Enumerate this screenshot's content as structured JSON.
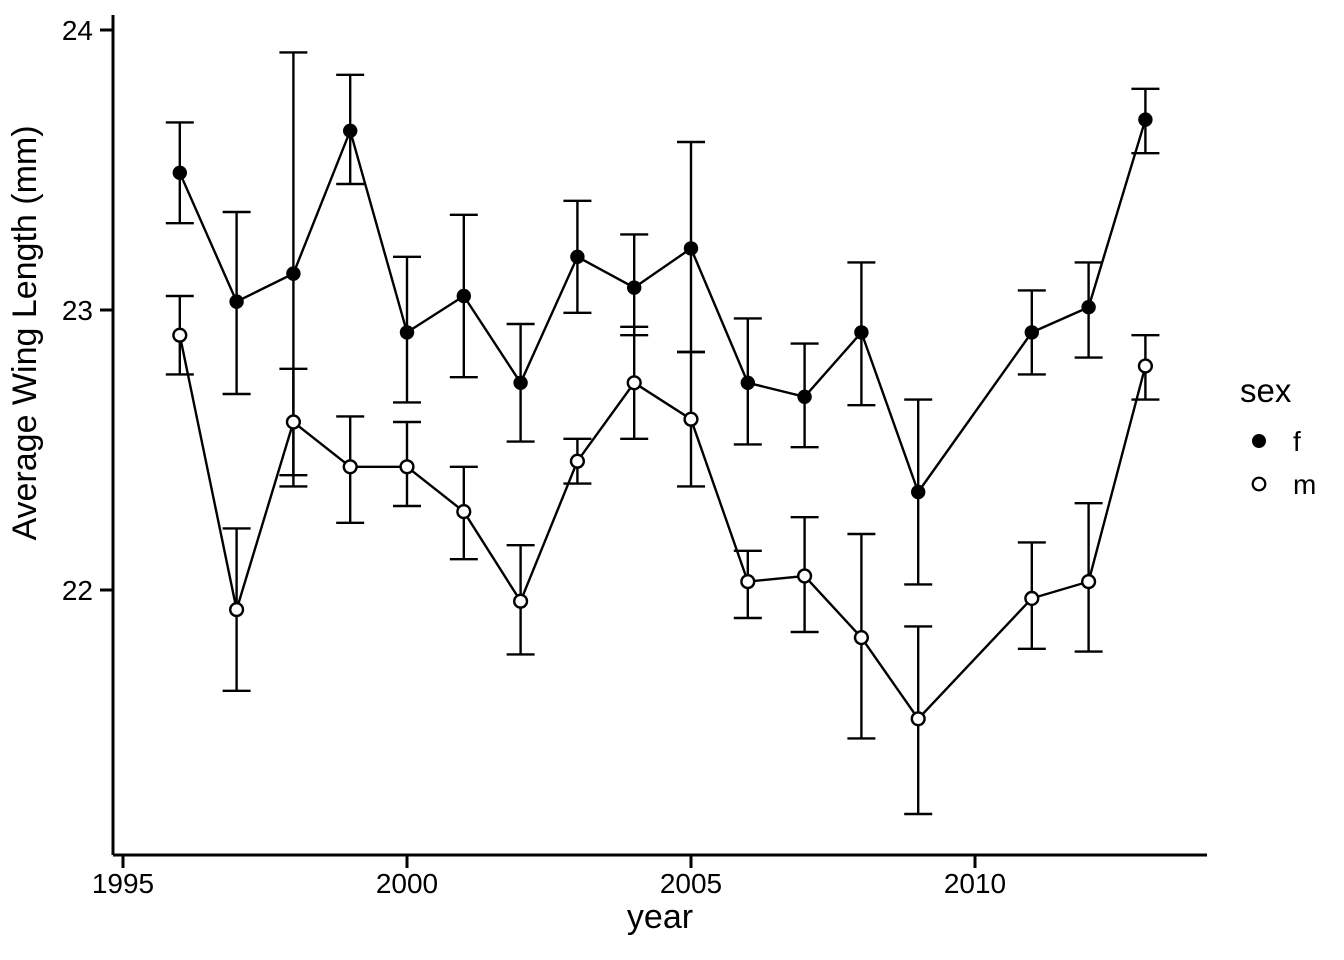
{
  "figure": {
    "background_color": "#ffffff",
    "foreground_color": "#000000",
    "y_axis_title": "Average Wing Length (mm)",
    "x_axis_title": "year",
    "legend": {
      "title": "sex",
      "items": [
        {
          "label": "f",
          "marker": "filled-circle"
        },
        {
          "label": "m",
          "marker": "open-circle"
        }
      ]
    }
  },
  "chart_data": {
    "type": "line",
    "title": "",
    "xlabel": "year",
    "ylabel": "Average Wing Length (mm)",
    "grid": false,
    "legend_position": "right",
    "xlim": [
      1994.8,
      2014.1
    ],
    "ylim": [
      21.05,
      24.05
    ],
    "xticks": [
      1995,
      2000,
      2005,
      2010
    ],
    "yticks": [
      22,
      23,
      24
    ],
    "x": [
      1996,
      1997,
      1998,
      1999,
      2000,
      2001,
      2002,
      2003,
      2004,
      2005,
      2006,
      2007,
      2008,
      2009,
      2011,
      2012,
      2013
    ],
    "error_bars": true,
    "series": [
      {
        "name": "f",
        "marker": "filled-circle",
        "values": [
          23.49,
          23.03,
          23.13,
          23.64,
          22.92,
          23.05,
          22.74,
          23.19,
          23.08,
          23.22,
          22.74,
          22.69,
          22.92,
          22.35,
          22.92,
          23.01,
          23.68
        ],
        "err_low": [
          23.31,
          22.7,
          22.41,
          23.45,
          22.67,
          22.76,
          22.53,
          22.99,
          22.91,
          22.85,
          22.52,
          22.51,
          22.66,
          22.02,
          22.77,
          22.83,
          23.56
        ],
        "err_high": [
          23.67,
          23.35,
          23.92,
          23.84,
          23.19,
          23.34,
          22.95,
          23.39,
          23.27,
          23.6,
          22.97,
          22.88,
          23.17,
          22.68,
          23.07,
          23.17,
          23.79
        ]
      },
      {
        "name": "m",
        "marker": "open-circle",
        "values": [
          22.91,
          21.93,
          22.6,
          22.44,
          22.44,
          22.28,
          21.96,
          22.46,
          22.74,
          22.61,
          22.03,
          22.05,
          21.83,
          21.54,
          21.97,
          22.03,
          22.8
        ],
        "err_low": [
          22.77,
          21.64,
          22.37,
          22.24,
          22.3,
          22.11,
          21.77,
          22.38,
          22.54,
          22.37,
          21.9,
          21.85,
          21.47,
          21.2,
          21.79,
          21.78,
          22.68
        ],
        "err_high": [
          23.05,
          22.22,
          22.79,
          22.62,
          22.6,
          22.44,
          22.16,
          22.54,
          22.94,
          22.85,
          22.14,
          22.26,
          22.2,
          21.87,
          22.17,
          22.31,
          22.91
        ]
      }
    ]
  }
}
